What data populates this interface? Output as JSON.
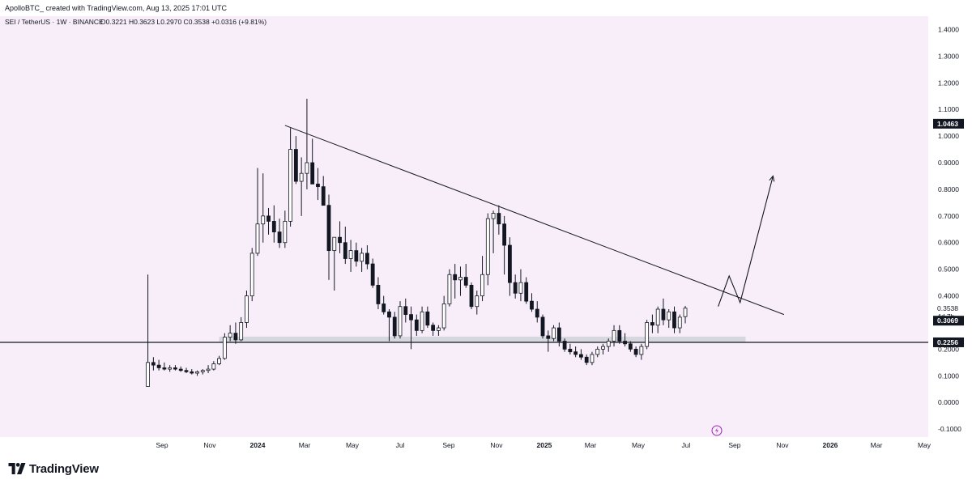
{
  "header": {
    "text": "ApolloBTC_ created with TradingView.com, Aug 13, 2025 17:01 UTC"
  },
  "chart_data": {
    "type": "candlestick",
    "symbol_line": "SEI / TetherUS · 1W · BINANCE",
    "ohlc_line": "O0.3221  H0.3623  L0.2970  C0.3538  +0.0316 (+9.81%)",
    "y_axis_ticks": [
      "1.4000",
      "1.3000",
      "1.2000",
      "1.1000",
      "1.0000",
      "0.9000",
      "0.8000",
      "0.7000",
      "0.6000",
      "0.5000",
      "0.4000",
      "0.2000",
      "0.1000",
      "0.0000",
      "-0.1000"
    ],
    "y_tick_values": [
      1.4,
      1.3,
      1.2,
      1.1,
      1.0,
      0.9,
      0.8,
      0.7,
      0.6,
      0.5,
      0.4,
      0.2,
      0.1,
      0.0,
      -0.1
    ],
    "ylim": [
      -0.13,
      1.45
    ],
    "x_axis_ticks": [
      "Sep",
      "Nov",
      "2024",
      "Mar",
      "May",
      "Jul",
      "Sep",
      "Nov",
      "2025",
      "Mar",
      "May",
      "Jul",
      "Sep",
      "Nov",
      "2026",
      "Mar",
      "May"
    ],
    "x_tick_dates": [
      "2023-09-01",
      "2023-11-01",
      "2024-01-01",
      "2024-03-01",
      "2024-05-01",
      "2024-07-01",
      "2024-09-01",
      "2024-11-01",
      "2025-01-01",
      "2025-03-01",
      "2025-05-01",
      "2025-07-01",
      "2025-09-01",
      "2025-11-01",
      "2026-01-01",
      "2026-03-01",
      "2026-05-01"
    ],
    "bold_x_ticks": [
      "2024",
      "2025",
      "2026"
    ],
    "price_labels": {
      "marker_high": "1.0463",
      "current_price": "0.3538",
      "countdown": "4d 7h",
      "level_a": "0.3069",
      "support": "0.2256"
    },
    "price_label_values": {
      "marker_high": 1.0463,
      "current_price": 0.3538,
      "level_a": 0.3069,
      "support": 0.2256
    },
    "support_zone": {
      "low": 0.225,
      "high": 0.247,
      "start": "2023-11-13",
      "end": "2025-09-15"
    },
    "trendline": {
      "start_date": "2024-02-05",
      "start_price": 1.04,
      "end_date": "2025-11-03",
      "end_price": 0.33
    },
    "projection_path": [
      {
        "date": "2025-08-11",
        "price": 0.36
      },
      {
        "date": "2025-08-25",
        "price": 0.475
      },
      {
        "date": "2025-09-08",
        "price": 0.375
      },
      {
        "date": "2025-10-20",
        "price": 0.85
      }
    ],
    "first_date": "2023-08-14",
    "candles": [
      [
        0.06,
        0.48,
        0.06,
        0.15
      ],
      [
        0.15,
        0.17,
        0.12,
        0.14
      ],
      [
        0.14,
        0.16,
        0.12,
        0.13
      ],
      [
        0.13,
        0.15,
        0.12,
        0.125
      ],
      [
        0.125,
        0.14,
        0.115,
        0.13
      ],
      [
        0.13,
        0.14,
        0.12,
        0.125
      ],
      [
        0.125,
        0.135,
        0.115,
        0.12
      ],
      [
        0.12,
        0.13,
        0.11,
        0.115
      ],
      [
        0.115,
        0.125,
        0.105,
        0.11
      ],
      [
        0.11,
        0.12,
        0.1,
        0.115
      ],
      [
        0.115,
        0.125,
        0.105,
        0.12
      ],
      [
        0.12,
        0.14,
        0.11,
        0.125
      ],
      [
        0.125,
        0.155,
        0.12,
        0.145
      ],
      [
        0.145,
        0.175,
        0.14,
        0.165
      ],
      [
        0.165,
        0.26,
        0.16,
        0.245
      ],
      [
        0.245,
        0.29,
        0.23,
        0.26
      ],
      [
        0.26,
        0.3,
        0.22,
        0.235
      ],
      [
        0.235,
        0.32,
        0.23,
        0.3
      ],
      [
        0.3,
        0.42,
        0.28,
        0.4
      ],
      [
        0.4,
        0.58,
        0.38,
        0.56
      ],
      [
        0.56,
        0.88,
        0.55,
        0.67
      ],
      [
        0.67,
        0.86,
        0.6,
        0.7
      ],
      [
        0.7,
        0.73,
        0.63,
        0.68
      ],
      [
        0.68,
        0.74,
        0.6,
        0.64
      ],
      [
        0.64,
        0.69,
        0.58,
        0.6
      ],
      [
        0.6,
        0.72,
        0.58,
        0.68
      ],
      [
        0.68,
        1.03,
        0.66,
        0.95
      ],
      [
        0.95,
        1.0,
        0.82,
        0.83
      ],
      [
        0.83,
        0.92,
        0.7,
        0.86
      ],
      [
        0.86,
        1.14,
        0.8,
        0.9
      ],
      [
        0.9,
        0.99,
        0.82,
        0.82
      ],
      [
        0.82,
        0.88,
        0.76,
        0.81
      ],
      [
        0.81,
        0.85,
        0.75,
        0.74
      ],
      [
        0.74,
        0.78,
        0.46,
        0.57
      ],
      [
        0.57,
        0.62,
        0.42,
        0.62
      ],
      [
        0.62,
        0.68,
        0.56,
        0.6
      ],
      [
        0.6,
        0.66,
        0.52,
        0.54
      ],
      [
        0.54,
        0.61,
        0.49,
        0.57
      ],
      [
        0.57,
        0.6,
        0.51,
        0.53
      ],
      [
        0.53,
        0.58,
        0.49,
        0.56
      ],
      [
        0.56,
        0.59,
        0.5,
        0.52
      ],
      [
        0.52,
        0.54,
        0.43,
        0.44
      ],
      [
        0.44,
        0.47,
        0.35,
        0.37
      ],
      [
        0.37,
        0.4,
        0.33,
        0.34
      ],
      [
        0.34,
        0.35,
        0.23,
        0.32
      ],
      [
        0.32,
        0.34,
        0.24,
        0.25
      ],
      [
        0.25,
        0.38,
        0.24,
        0.36
      ],
      [
        0.36,
        0.39,
        0.3,
        0.33
      ],
      [
        0.33,
        0.36,
        0.2,
        0.31
      ],
      [
        0.31,
        0.33,
        0.25,
        0.27
      ],
      [
        0.27,
        0.36,
        0.26,
        0.34
      ],
      [
        0.34,
        0.36,
        0.28,
        0.29
      ],
      [
        0.29,
        0.3,
        0.25,
        0.27
      ],
      [
        0.27,
        0.29,
        0.25,
        0.28
      ],
      [
        0.28,
        0.4,
        0.27,
        0.37
      ],
      [
        0.37,
        0.5,
        0.36,
        0.48
      ],
      [
        0.48,
        0.52,
        0.39,
        0.46
      ],
      [
        0.46,
        0.51,
        0.4,
        0.47
      ],
      [
        0.47,
        0.52,
        0.43,
        0.44
      ],
      [
        0.44,
        0.45,
        0.35,
        0.36
      ],
      [
        0.36,
        0.42,
        0.33,
        0.4
      ],
      [
        0.4,
        0.55,
        0.38,
        0.48
      ],
      [
        0.48,
        0.71,
        0.44,
        0.69
      ],
      [
        0.69,
        0.72,
        0.56,
        0.71
      ],
      [
        0.71,
        0.74,
        0.63,
        0.67
      ],
      [
        0.67,
        0.7,
        0.48,
        0.59
      ],
      [
        0.59,
        0.62,
        0.4,
        0.45
      ],
      [
        0.45,
        0.48,
        0.39,
        0.41
      ],
      [
        0.41,
        0.5,
        0.38,
        0.45
      ],
      [
        0.45,
        0.47,
        0.37,
        0.38
      ],
      [
        0.38,
        0.41,
        0.34,
        0.35
      ],
      [
        0.35,
        0.38,
        0.3,
        0.32
      ],
      [
        0.32,
        0.33,
        0.24,
        0.25
      ],
      [
        0.25,
        0.27,
        0.19,
        0.24
      ],
      [
        0.24,
        0.29,
        0.23,
        0.28
      ],
      [
        0.28,
        0.3,
        0.21,
        0.23
      ],
      [
        0.23,
        0.24,
        0.19,
        0.2
      ],
      [
        0.2,
        0.22,
        0.18,
        0.19
      ],
      [
        0.19,
        0.21,
        0.17,
        0.18
      ],
      [
        0.18,
        0.2,
        0.16,
        0.17
      ],
      [
        0.17,
        0.18,
        0.14,
        0.15
      ],
      [
        0.15,
        0.19,
        0.14,
        0.18
      ],
      [
        0.18,
        0.21,
        0.17,
        0.2
      ],
      [
        0.2,
        0.22,
        0.18,
        0.21
      ],
      [
        0.21,
        0.24,
        0.19,
        0.23
      ],
      [
        0.23,
        0.29,
        0.21,
        0.27
      ],
      [
        0.27,
        0.29,
        0.22,
        0.23
      ],
      [
        0.23,
        0.26,
        0.21,
        0.22
      ],
      [
        0.22,
        0.23,
        0.19,
        0.2
      ],
      [
        0.2,
        0.21,
        0.17,
        0.18
      ],
      [
        0.18,
        0.22,
        0.16,
        0.21
      ],
      [
        0.21,
        0.31,
        0.2,
        0.3
      ],
      [
        0.3,
        0.33,
        0.26,
        0.29
      ],
      [
        0.29,
        0.36,
        0.26,
        0.35
      ],
      [
        0.35,
        0.39,
        0.29,
        0.31
      ],
      [
        0.31,
        0.35,
        0.28,
        0.34
      ],
      [
        0.34,
        0.36,
        0.26,
        0.28
      ],
      [
        0.28,
        0.33,
        0.26,
        0.32
      ],
      [
        0.3221,
        0.3623,
        0.297,
        0.3538
      ]
    ]
  }
}
